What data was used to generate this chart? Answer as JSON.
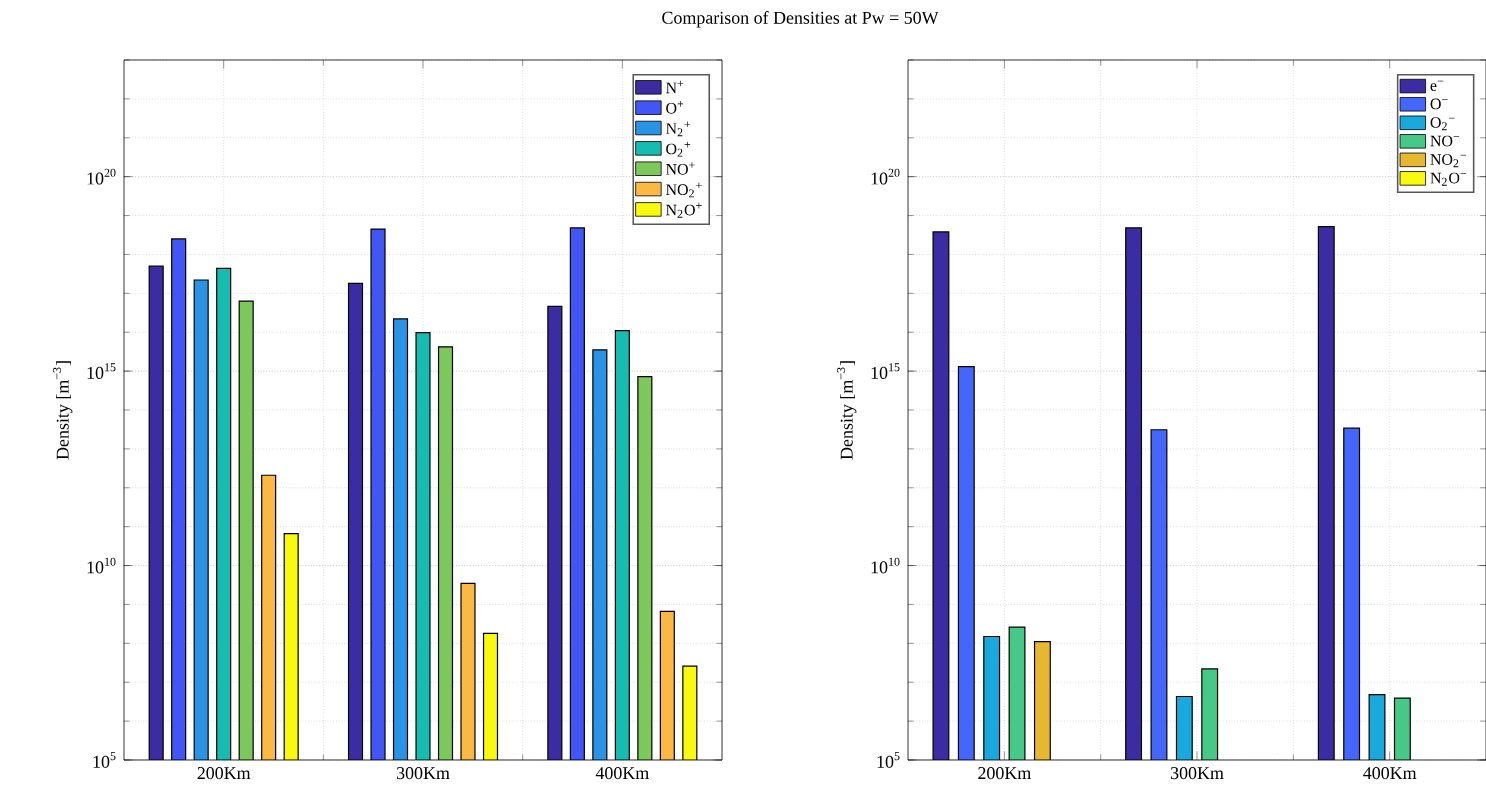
{
  "chart_data": [
    {
      "type": "bar",
      "title": "Comparison of Densities at Pw = 50W",
      "ylabel": "Density [m$^{−3}$]",
      "categories": [
        "200Km",
        "300Km",
        "400Km"
      ],
      "log": "y",
      "grid": true,
      "legend": "top right",
      "ylim": [
        100000.0,
        1e+23
      ],
      "yticks": [
        {
          "value": 100000.0,
          "label": "10$^{5}$"
        },
        {
          "value": 10000000000.0,
          "label": "10$^{10}$"
        },
        {
          "value": 1000000000000000.0,
          "label": "10$^{15}$"
        },
        {
          "value": 1e+20,
          "label": "10$^{20}$"
        }
      ],
      "series": [
        {
          "name": "N$^{+}$",
          "color": "#3b2ca3",
          "values": [
            5e+17,
            1.8e+17,
            4.6e+16
          ]
        },
        {
          "name": "O$^{+}$",
          "color": "#4255f5",
          "values": [
            2.5e+18,
            4.5e+18,
            4.8e+18
          ]
        },
        {
          "name": "N$_{2}$$^{+}$",
          "color": "#2a93e6",
          "values": [
            2.2e+17,
            2.2e+16,
            3500000000000000.0
          ]
        },
        {
          "name": "O$_{2}$$^{+}$",
          "color": "#17bcb0",
          "values": [
            4.4e+17,
            9800000000000000.0,
            1.1e+16
          ]
        },
        {
          "name": "NO$^{+}$",
          "color": "#7cc85a",
          "values": [
            6.3e+16,
            4200000000000000.0,
            720000000000000.0
          ]
        },
        {
          "name": "NO$_{2}$$^{+}$",
          "color": "#fbb842",
          "values": [
            2100000000000.0,
            3500000000.0,
            660000000.0
          ]
        },
        {
          "name": "N$_{2}$O$^{+}$",
          "color": "#f9f90f",
          "values": [
            66000000000.0,
            180000000.0,
            26000000.0
          ]
        }
      ]
    },
    {
      "type": "bar",
      "ylabel": "Density [m$^{−3}$]",
      "categories": [
        "200Km",
        "300Km",
        "400Km"
      ],
      "log": "y",
      "grid": true,
      "legend": "top right",
      "ylim": [
        100000.0,
        1e+23
      ],
      "yticks": [
        {
          "value": 100000.0,
          "label": "10$^{5}$"
        },
        {
          "value": 10000000000.0,
          "label": "10$^{10}$"
        },
        {
          "value": 1000000000000000.0,
          "label": "10$^{15}$"
        },
        {
          "value": 1e+20,
          "label": "10$^{20}$"
        }
      ],
      "series": [
        {
          "name": "e$^{−}$",
          "color": "#3b2ca3",
          "values": [
            3.8e+18,
            4.8e+18,
            5.2e+18
          ]
        },
        {
          "name": "O$^{−}$",
          "color": "#4566fb",
          "values": [
            1300000000000000.0,
            31000000000000.0,
            34000000000000.0
          ]
        },
        {
          "name": "O$_{2}$$^{−}$",
          "color": "#1aa9dc",
          "values": [
            150000000.0,
            4300000.0,
            4800000.0
          ]
        },
        {
          "name": "NO$^{−}$",
          "color": "#46c986",
          "values": [
            260000000.0,
            22000000.0,
            3900000.0
          ]
        },
        {
          "name": "NO$_{2}$$^{−}$",
          "color": "#e6b830",
          "values": [
            110000000.0,
            null,
            null
          ]
        },
        {
          "name": "N$_{2}$O$^{−}$",
          "color": "#f9fb0e",
          "values": [
            null,
            null,
            null
          ]
        }
      ]
    }
  ]
}
